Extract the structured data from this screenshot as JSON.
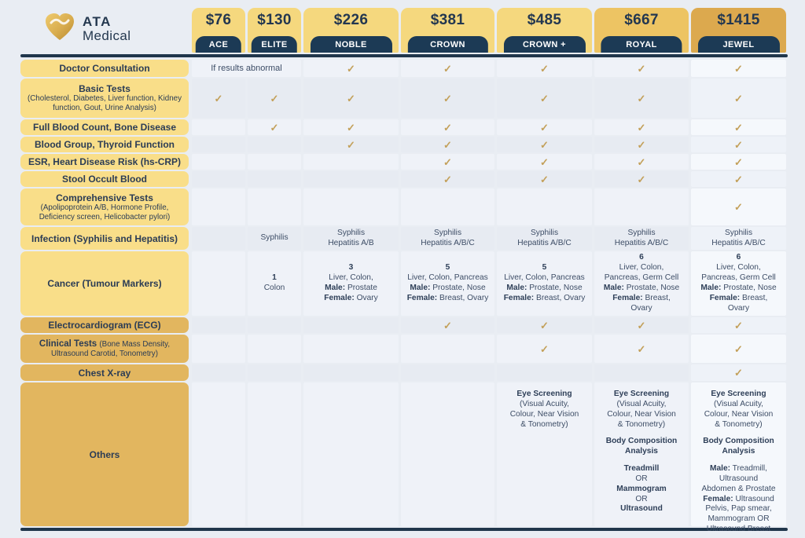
{
  "brand": {
    "line1": "ATA",
    "line2": "Medical"
  },
  "colors": {
    "page_bg": "#E9EDF3",
    "gold_label_light": "#F9DE89",
    "gold_label_dark": "#E2B65F",
    "card_gold": "#F5D87E",
    "card_gold_medium": "#EDC463",
    "card_gold_dark": "#DCA94E",
    "navy": "#1C3A55",
    "check": "#C3A05A"
  },
  "packages": [
    {
      "price": "$76",
      "name": "ACE",
      "tier": "light"
    },
    {
      "price": "$130",
      "name": "ELITE",
      "tier": "light"
    },
    {
      "price": "$226",
      "name": "NOBLE",
      "tier": "light"
    },
    {
      "price": "$381",
      "name": "CROWN",
      "tier": "light"
    },
    {
      "price": "$485",
      "name": "CROWN +",
      "tier": "light"
    },
    {
      "price": "$667",
      "name": "ROYAL",
      "tier": "medium"
    },
    {
      "price": "$1415",
      "name": "JEWEL",
      "tier": "dark"
    }
  ],
  "rows": [
    {
      "label": {
        "text": "Doctor Consultation"
      },
      "shade": "light",
      "cells": [
        {
          "text": "If results abnormal",
          "span": 2
        },
        "check",
        "check",
        "check",
        "check",
        "check"
      ]
    },
    {
      "label": {
        "bold": "Basic Tests",
        "sub": "(Cholesterol, Diabetes, Liver function, Kidney function, Gout, Urine Analysis)"
      },
      "shade": "light",
      "cells": [
        "check",
        "check",
        "check",
        "check",
        "check",
        "check",
        "check"
      ]
    },
    {
      "label": {
        "text": "Full Blood Count, Bone Disease"
      },
      "shade": "light",
      "cells": [
        "",
        "check",
        "check",
        "check",
        "check",
        "check",
        "check"
      ]
    },
    {
      "label": {
        "text": "Blood Group, Thyroid Function"
      },
      "shade": "light",
      "cells": [
        "",
        "",
        "check",
        "check",
        "check",
        "check",
        "check"
      ]
    },
    {
      "label": {
        "text": "ESR, Heart Disease Risk (hs-CRP)"
      },
      "shade": "light",
      "cells": [
        "",
        "",
        "",
        "check",
        "check",
        "check",
        "check"
      ]
    },
    {
      "label": {
        "text": "Stool Occult Blood"
      },
      "shade": "light",
      "cells": [
        "",
        "",
        "",
        "check",
        "check",
        "check",
        "check"
      ]
    },
    {
      "label": {
        "bold": "Comprehensive Tests",
        "sub": "(Apolipoprotein A/B, Hormone Profile, Deficiency screen, Helicobacter pylori)"
      },
      "shade": "light",
      "cells": [
        "",
        "",
        "",
        "",
        "",
        "",
        "check"
      ]
    },
    {
      "label": {
        "text": "Infection (Syphilis and Hepatitis)"
      },
      "shade": "light",
      "cells": [
        "",
        {
          "lines": [
            {
              "t": "Syphilis"
            }
          ]
        },
        {
          "lines": [
            {
              "t": "Syphilis"
            },
            {
              "t": "Hepatitis A/B"
            }
          ]
        },
        {
          "lines": [
            {
              "t": "Syphilis"
            },
            {
              "t": "Hepatitis A/B/C"
            }
          ]
        },
        {
          "lines": [
            {
              "t": "Syphilis"
            },
            {
              "t": "Hepatitis A/B/C"
            }
          ]
        },
        {
          "lines": [
            {
              "t": "Syphilis"
            },
            {
              "t": "Hepatitis A/B/C"
            }
          ]
        },
        {
          "lines": [
            {
              "t": "Syphilis"
            },
            {
              "t": "Hepatitis A/B/C"
            }
          ]
        }
      ]
    },
    {
      "label": {
        "text": "Cancer (Tumour Markers)"
      },
      "shade": "light",
      "cells": [
        "",
        {
          "lines": [
            {
              "b": "1"
            },
            {
              "t": "Colon"
            }
          ]
        },
        {
          "lines": [
            {
              "b": "3"
            },
            {
              "t": "Liver, Colon,"
            },
            {
              "b": "Male:",
              "t": " Prostate"
            },
            {
              "b": "Female:",
              "t": " Ovary"
            }
          ]
        },
        {
          "lines": [
            {
              "b": "5"
            },
            {
              "t": "Liver, Colon, Pancreas"
            },
            {
              "b": "Male:",
              "t": " Prostate, Nose"
            },
            {
              "b": "Female:",
              "t": " Breast, Ovary"
            }
          ]
        },
        {
          "lines": [
            {
              "b": "5"
            },
            {
              "t": "Liver, Colon, Pancreas"
            },
            {
              "b": "Male:",
              "t": " Prostate, Nose"
            },
            {
              "b": "Female:",
              "t": " Breast, Ovary"
            }
          ]
        },
        {
          "lines": [
            {
              "b": "6"
            },
            {
              "t": "Liver, Colon,"
            },
            {
              "t": "Pancreas, Germ Cell"
            },
            {
              "b": "Male:",
              "t": " Prostate, Nose"
            },
            {
              "b": "Female:",
              "t": " Breast,"
            },
            {
              "t": "Ovary"
            }
          ]
        },
        {
          "lines": [
            {
              "b": "6"
            },
            {
              "t": "Liver, Colon,"
            },
            {
              "t": "Pancreas, Germ Cell"
            },
            {
              "b": "Male:",
              "t": " Prostate, Nose"
            },
            {
              "b": "Female:",
              "t": " Breast,"
            },
            {
              "t": "Ovary"
            }
          ]
        }
      ]
    },
    {
      "label": {
        "text": "Electrocardiogram (ECG)"
      },
      "shade": "dark",
      "cells": [
        "",
        "",
        "",
        "check",
        "check",
        "check",
        "check"
      ]
    },
    {
      "label": {
        "bold_inline": "Clinical Tests ",
        "sub": "(Bone Mass Density, Ultrasound Carotid, Tonometry)"
      },
      "shade": "dark",
      "cells": [
        "",
        "",
        "",
        "",
        "check",
        "check",
        "check"
      ]
    },
    {
      "label": {
        "text": "Chest X-ray"
      },
      "shade": "dark",
      "cells": [
        "",
        "",
        "",
        "",
        "",
        "",
        "check"
      ]
    },
    {
      "label": {
        "text": "Others"
      },
      "shade": "dark",
      "cells": [
        "",
        "",
        "",
        "",
        {
          "top": true,
          "lines": [
            {
              "b": "Eye Screening"
            },
            {
              "t": "(Visual Acuity,"
            },
            {
              "t": "Colour, Near Vision"
            },
            {
              "t": "& Tonometry)"
            }
          ]
        },
        {
          "top": true,
          "lines": [
            {
              "b": "Eye Screening"
            },
            {
              "t": "(Visual Acuity,"
            },
            {
              "t": "Colour, Near Vision"
            },
            {
              "t": "& Tonometry)"
            },
            {
              "b": "Body Composition",
              "gap": true
            },
            {
              "b": "Analysis"
            },
            {
              "b": "Treadmill",
              "gap": true
            },
            {
              "t": "OR"
            },
            {
              "b": "Mammogram"
            },
            {
              "t": "OR"
            },
            {
              "b": "Ultrasound"
            }
          ]
        },
        {
          "top": true,
          "lines": [
            {
              "b": "Eye Screening"
            },
            {
              "t": "(Visual Acuity,"
            },
            {
              "t": "Colour, Near Vision"
            },
            {
              "t": "& Tonometry)"
            },
            {
              "b": "Body Composition",
              "gap": true
            },
            {
              "b": "Analysis"
            },
            {
              "b": "Male:",
              "t": " Treadmill,",
              "gap": true
            },
            {
              "t": "Ultrasound"
            },
            {
              "t": "Abdomen & Prostate"
            },
            {
              "b": "Female:",
              "t": " Ultrasound"
            },
            {
              "t": "Pelvis, Pap smear,"
            },
            {
              "t": "Mammogram OR"
            },
            {
              "t": "Ultrasound Breast"
            }
          ]
        }
      ]
    }
  ]
}
